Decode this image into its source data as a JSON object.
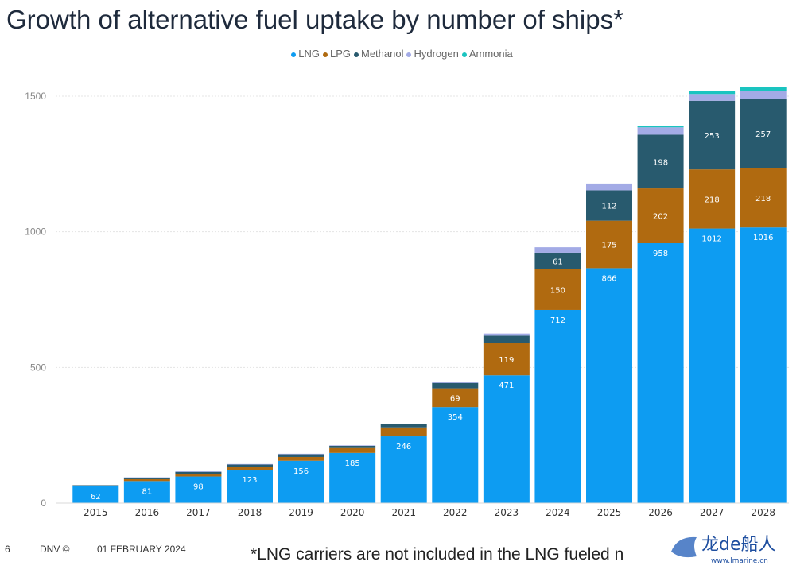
{
  "title": "Growth of alternative fuel uptake by number of ships*",
  "footer": {
    "page_number": "6",
    "brand": "DNV ©",
    "date": "01 FEBRUARY 2024",
    "footnote": "*LNG carriers are not included in the LNG fueled n"
  },
  "watermark": {
    "text": "龙de船人",
    "url": "www.lmarine.cn"
  },
  "chart_data": {
    "type": "bar",
    "stacked": true,
    "categories": [
      "2015",
      "2016",
      "2017",
      "2018",
      "2019",
      "2020",
      "2021",
      "2022",
      "2023",
      "2024",
      "2025",
      "2026",
      "2027",
      "2028"
    ],
    "series": [
      {
        "name": "LNG",
        "color": "#0d9cf2",
        "values": [
          62,
          81,
          98,
          123,
          156,
          185,
          246,
          354,
          471,
          712,
          866,
          958,
          1012,
          1016
        ],
        "labels_shown": [
          true,
          true,
          true,
          true,
          true,
          true,
          true,
          true,
          true,
          true,
          true,
          true,
          true,
          true
        ]
      },
      {
        "name": "LPG",
        "color": "#b06a10",
        "values": [
          2,
          7,
          9,
          11,
          14,
          18,
          33,
          69,
          119,
          150,
          175,
          202,
          218,
          218
        ],
        "labels_shown": [
          false,
          false,
          false,
          false,
          false,
          false,
          false,
          true,
          true,
          true,
          true,
          true,
          true,
          true
        ]
      },
      {
        "name": "Methanol",
        "color": "#285a6e",
        "values": [
          2,
          6,
          8,
          8,
          10,
          8,
          12,
          20,
          27,
          61,
          112,
          198,
          253,
          257
        ],
        "labels_shown": [
          false,
          false,
          false,
          false,
          false,
          false,
          false,
          false,
          false,
          true,
          true,
          true,
          true,
          true
        ]
      },
      {
        "name": "Hydrogen",
        "color": "#a3abe6",
        "values": [
          0,
          1,
          2,
          2,
          2,
          2,
          2,
          5,
          8,
          20,
          25,
          27,
          25,
          27
        ],
        "labels_shown": [
          false,
          false,
          false,
          false,
          false,
          false,
          false,
          false,
          false,
          false,
          false,
          false,
          false,
          false
        ]
      },
      {
        "name": "Ammonia",
        "color": "#1ac4c0",
        "values": [
          0,
          0,
          0,
          0,
          0,
          0,
          0,
          0,
          0,
          0,
          0,
          6,
          12,
          15
        ],
        "labels_shown": [
          false,
          false,
          false,
          false,
          false,
          false,
          false,
          false,
          false,
          false,
          false,
          false,
          false,
          false
        ]
      }
    ],
    "ylim": [
      0,
      1500
    ],
    "yticks": [
      0,
      500,
      1000,
      1500
    ],
    "grid": true,
    "legend_position": "top-center"
  }
}
